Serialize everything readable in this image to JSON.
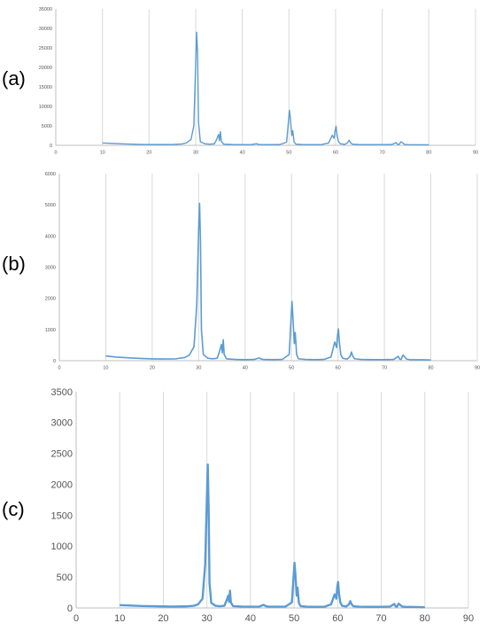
{
  "colors": {
    "series": "#5b9bd5",
    "grid": "#d9d9d9",
    "axis": "#bfbfbf",
    "tick_text": "#555555"
  },
  "chart_data": [
    {
      "type": "line",
      "panel_label": "(a)",
      "xlim": [
        0,
        90
      ],
      "ylim": [
        0,
        35000
      ],
      "x_ticks": [
        0,
        10,
        20,
        30,
        40,
        50,
        60,
        70,
        80,
        90
      ],
      "y_ticks": [
        0,
        5000,
        10000,
        15000,
        20000,
        25000,
        30000,
        35000
      ],
      "grid": "vertical",
      "series": [
        {
          "x": [
            10,
            12,
            15,
            18,
            20,
            22,
            25,
            27,
            28,
            29,
            29.6,
            30,
            30.2,
            30.4,
            30.6,
            31,
            32,
            33,
            34,
            34.5,
            34.9,
            35.1,
            35.3,
            35.5,
            36,
            38,
            40,
            42,
            43,
            43.5,
            44,
            46,
            48,
            49.5,
            50.1,
            50.3,
            50.6,
            50.8,
            51.1,
            51.5,
            53,
            55,
            57,
            58.5,
            59.3,
            59.7,
            59.9,
            60.1,
            60.3,
            60.6,
            61,
            62,
            62.6,
            62.9,
            63.2,
            63.6,
            65,
            68,
            70,
            72,
            73,
            73.3,
            73.6,
            74,
            74.4,
            74.8,
            75.5,
            78,
            80
          ],
          "y": [
            600,
            500,
            350,
            250,
            220,
            200,
            220,
            350,
            600,
            1500,
            5000,
            21000,
            29000,
            24000,
            6000,
            900,
            400,
            300,
            400,
            1500,
            2800,
            1200,
            3500,
            1000,
            300,
            200,
            180,
            200,
            400,
            250,
            200,
            180,
            200,
            800,
            9000,
            7000,
            2500,
            3800,
            900,
            300,
            200,
            180,
            200,
            600,
            2600,
            1800,
            3800,
            4900,
            2800,
            1000,
            400,
            250,
            700,
            1300,
            700,
            300,
            200,
            180,
            180,
            200,
            700,
            250,
            200,
            900,
            600,
            250,
            180,
            150,
            120
          ]
        }
      ]
    },
    {
      "type": "line",
      "panel_label": "(b)",
      "xlim": [
        0,
        90
      ],
      "ylim": [
        0,
        6000
      ],
      "x_ticks": [
        0,
        10,
        20,
        30,
        40,
        50,
        60,
        70,
        80,
        90
      ],
      "y_ticks": [
        0,
        1000,
        2000,
        3000,
        4000,
        5000,
        6000
      ],
      "grid": "vertical",
      "series": [
        {
          "x": [
            10,
            12,
            15,
            18,
            20,
            22,
            25,
            27,
            28,
            29,
            29.6,
            30,
            30.2,
            30.4,
            30.6,
            31,
            32,
            33,
            34,
            34.5,
            34.9,
            35.1,
            35.3,
            35.5,
            36,
            38,
            40,
            42,
            43,
            43.5,
            44,
            46,
            48,
            49.5,
            50.1,
            50.3,
            50.6,
            50.8,
            51.1,
            51.5,
            53,
            55,
            57,
            58.5,
            59.3,
            59.7,
            59.9,
            60.1,
            60.3,
            60.6,
            61,
            62,
            62.6,
            62.9,
            63.2,
            63.6,
            65,
            68,
            70,
            72,
            73,
            73.3,
            73.6,
            74,
            74.4,
            74.8,
            75.5,
            78,
            80
          ],
          "y": [
            150,
            120,
            90,
            70,
            60,
            55,
            60,
            100,
            180,
            450,
            1800,
            4200,
            5050,
            3800,
            1000,
            200,
            80,
            60,
            80,
            300,
            520,
            250,
            670,
            200,
            60,
            40,
            35,
            40,
            90,
            50,
            40,
            35,
            40,
            200,
            1900,
            1400,
            550,
            900,
            200,
            60,
            40,
            35,
            40,
            120,
            600,
            420,
            800,
            1020,
            600,
            200,
            80,
            50,
            140,
            280,
            140,
            60,
            40,
            35,
            35,
            40,
            140,
            50,
            40,
            180,
            120,
            50,
            35,
            30,
            25
          ]
        }
      ]
    },
    {
      "type": "line",
      "panel_label": "(c)",
      "xlim": [
        0,
        90
      ],
      "ylim": [
        0,
        3500
      ],
      "x_ticks": [
        0,
        10,
        20,
        30,
        40,
        50,
        60,
        70,
        80,
        90
      ],
      "y_ticks": [
        0,
        500,
        1000,
        1500,
        2000,
        2500,
        3000,
        3500
      ],
      "grid": "vertical",
      "series": [
        {
          "x": [
            10,
            12,
            15,
            18,
            20,
            22,
            25,
            27,
            28,
            29,
            29.6,
            30,
            30.2,
            30.4,
            30.6,
            31,
            32,
            33,
            34,
            34.5,
            34.9,
            35.1,
            35.3,
            35.5,
            36,
            38,
            40,
            42,
            43,
            43.5,
            44,
            46,
            48,
            49.5,
            50.1,
            50.3,
            50.6,
            50.8,
            51.1,
            51.5,
            53,
            55,
            57,
            58.5,
            59.3,
            59.7,
            59.9,
            60.1,
            60.3,
            60.6,
            61,
            62,
            62.6,
            62.9,
            63.2,
            63.6,
            65,
            68,
            70,
            72,
            73,
            73.3,
            73.6,
            74,
            74.4,
            74.8,
            75.5,
            78,
            80
          ],
          "y": [
            45,
            40,
            32,
            28,
            25,
            22,
            25,
            35,
            60,
            150,
            700,
            1800,
            2320,
            1600,
            400,
            80,
            35,
            28,
            35,
            120,
            200,
            100,
            280,
            90,
            30,
            22,
            20,
            22,
            50,
            30,
            22,
            20,
            22,
            90,
            730,
            550,
            200,
            330,
            80,
            30,
            20,
            18,
            20,
            60,
            220,
            150,
            330,
            420,
            240,
            90,
            35,
            25,
            60,
            110,
            60,
            28,
            20,
            18,
            18,
            22,
            65,
            25,
            20,
            70,
            45,
            22,
            18,
            15,
            12
          ]
        }
      ]
    }
  ]
}
